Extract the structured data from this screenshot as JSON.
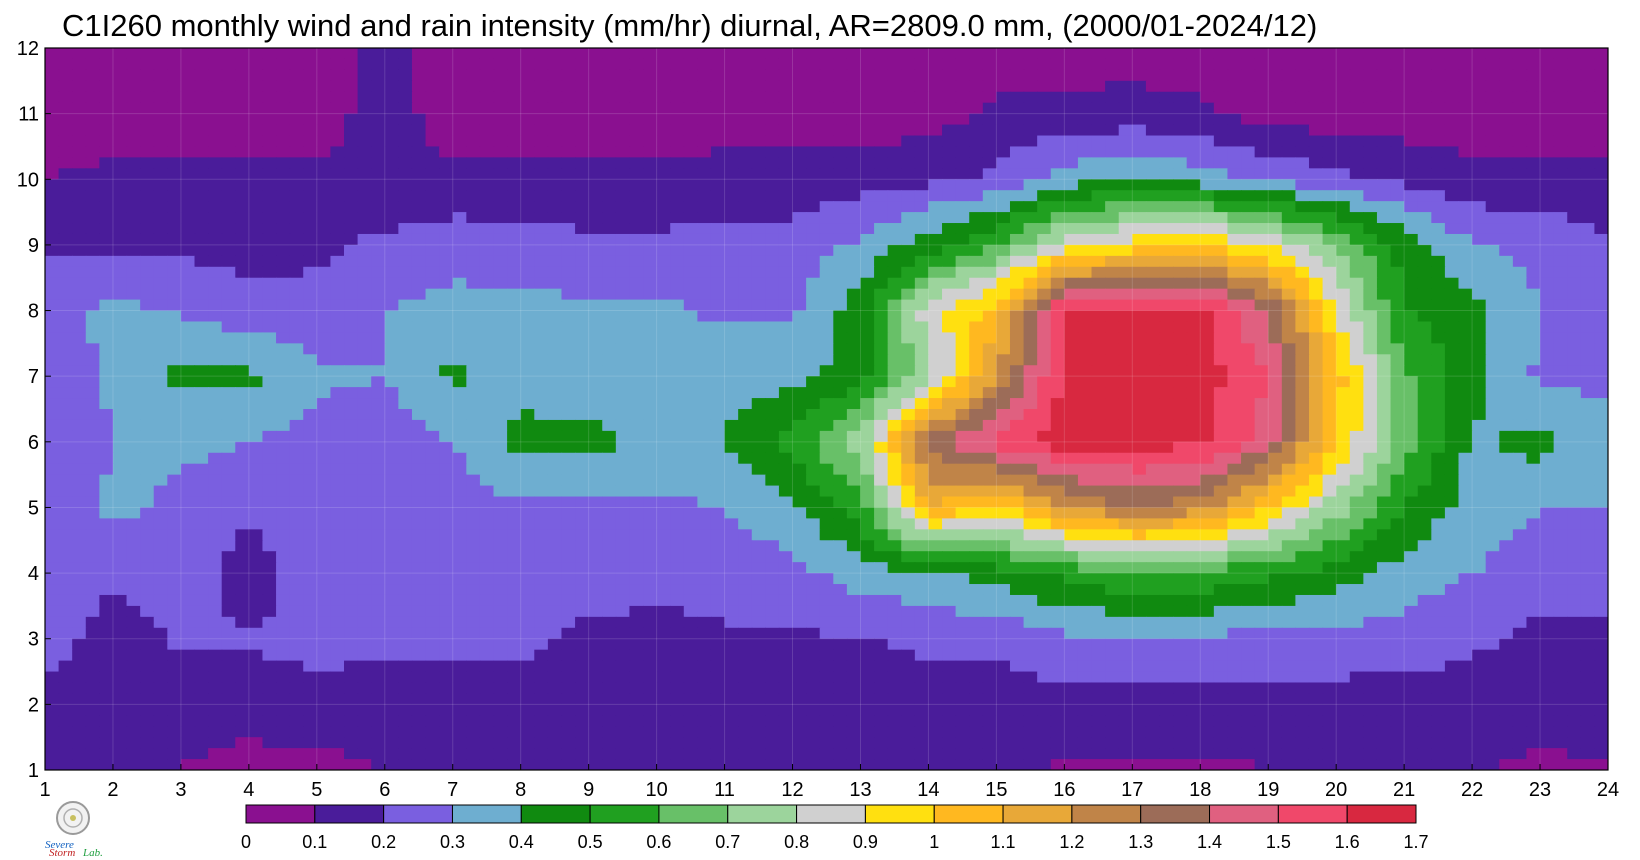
{
  "chart_data": {
    "type": "heatmap",
    "title": "C1I260 monthly wind and rain intensity (mm/hr) diurnal, AR=2809.0 mm, (2000/01-2024/12)",
    "xlabel": "",
    "ylabel": "",
    "x": [
      1,
      2,
      3,
      4,
      5,
      6,
      7,
      8,
      9,
      10,
      11,
      12,
      13,
      14,
      15,
      16,
      17,
      18,
      19,
      20,
      21,
      22,
      23,
      24
    ],
    "y": [
      1,
      2,
      3,
      4,
      5,
      6,
      7,
      8,
      9,
      10,
      11,
      12
    ],
    "xlim": [
      1,
      24
    ],
    "ylim": [
      1,
      12
    ],
    "x_ticks": [
      "1",
      "2",
      "3",
      "4",
      "5",
      "6",
      "7",
      "8",
      "9",
      "10",
      "11",
      "12",
      "13",
      "14",
      "15",
      "16",
      "17",
      "18",
      "19",
      "20",
      "21",
      "22",
      "23",
      "24"
    ],
    "y_ticks": [
      "1",
      "2",
      "3",
      "4",
      "5",
      "6",
      "7",
      "8",
      "9",
      "10",
      "11",
      "12"
    ],
    "grid": true,
    "values": [
      [
        0.15,
        0.1,
        0.1,
        0.05,
        0.06,
        0.1,
        0.1,
        0.1,
        0.17,
        0.17,
        0.18,
        0.18,
        0.18,
        0.18,
        0.18,
        0.08,
        0.08,
        0.08,
        0.1,
        0.1,
        0.12,
        0.12,
        0.07,
        0.09
      ],
      [
        0.17,
        0.13,
        0.15,
        0.16,
        0.18,
        0.16,
        0.16,
        0.17,
        0.15,
        0.15,
        0.15,
        0.15,
        0.15,
        0.15,
        0.15,
        0.17,
        0.17,
        0.17,
        0.16,
        0.16,
        0.15,
        0.14,
        0.16,
        0.16
      ],
      [
        0.24,
        0.16,
        0.21,
        0.21,
        0.22,
        0.22,
        0.22,
        0.22,
        0.18,
        0.18,
        0.19,
        0.19,
        0.19,
        0.22,
        0.22,
        0.28,
        0.28,
        0.28,
        0.27,
        0.26,
        0.26,
        0.22,
        0.17,
        0.18
      ],
      [
        0.24,
        0.22,
        0.26,
        0.15,
        0.25,
        0.26,
        0.26,
        0.26,
        0.24,
        0.22,
        0.23,
        0.27,
        0.35,
        0.38,
        0.45,
        0.52,
        0.6,
        0.58,
        0.52,
        0.45,
        0.35,
        0.3,
        0.26,
        0.26
      ],
      [
        0.22,
        0.32,
        0.28,
        0.22,
        0.3,
        0.28,
        0.25,
        0.28,
        0.26,
        0.28,
        0.3,
        0.38,
        0.55,
        1.1,
        0.95,
        1.2,
        1.3,
        1.25,
        1.0,
        0.75,
        0.5,
        0.35,
        0.3,
        0.3
      ],
      [
        0.2,
        0.3,
        0.32,
        0.3,
        0.26,
        0.25,
        0.3,
        0.44,
        0.43,
        0.38,
        0.4,
        0.55,
        0.75,
        1.35,
        1.55,
        1.65,
        1.65,
        1.62,
        1.45,
        1.0,
        0.65,
        0.38,
        0.44,
        0.32
      ],
      [
        0.23,
        0.32,
        0.42,
        0.42,
        0.32,
        0.3,
        0.42,
        0.35,
        0.33,
        0.33,
        0.36,
        0.36,
        0.45,
        0.75,
        1.2,
        1.62,
        1.65,
        1.65,
        1.5,
        1.05,
        0.62,
        0.45,
        0.28,
        0.28
      ],
      [
        0.28,
        0.32,
        0.29,
        0.24,
        0.23,
        0.3,
        0.33,
        0.33,
        0.32,
        0.32,
        0.28,
        0.28,
        0.45,
        0.85,
        1.05,
        1.62,
        1.65,
        1.62,
        1.4,
        0.9,
        0.5,
        0.44,
        0.3,
        0.27
      ],
      [
        0.18,
        0.18,
        0.18,
        0.16,
        0.18,
        0.22,
        0.26,
        0.25,
        0.22,
        0.22,
        0.24,
        0.24,
        0.32,
        0.45,
        0.6,
        0.85,
        0.95,
        1.0,
        0.9,
        0.7,
        0.45,
        0.31,
        0.27,
        0.22
      ],
      [
        0.1,
        0.12,
        0.12,
        0.12,
        0.12,
        0.12,
        0.12,
        0.12,
        0.12,
        0.12,
        0.14,
        0.14,
        0.16,
        0.18,
        0.22,
        0.35,
        0.4,
        0.35,
        0.28,
        0.22,
        0.17,
        0.13,
        0.13,
        0.12
      ],
      [
        0.05,
        0.05,
        0.05,
        0.05,
        0.05,
        0.15,
        0.05,
        0.05,
        0.05,
        0.05,
        0.05,
        0.05,
        0.05,
        0.05,
        0.12,
        0.13,
        0.14,
        0.12,
        0.06,
        0.05,
        0.05,
        0.05,
        0.05,
        0.05
      ],
      [
        0.05,
        0.05,
        0.1,
        0.05,
        0.05,
        0.12,
        0.05,
        0.05,
        0.05,
        0.05,
        0.05,
        0.05,
        0.05,
        0.05,
        0.05,
        0.05,
        0.05,
        0.05,
        0.05,
        0.05,
        0.05,
        0.05,
        0.05,
        0.05
      ]
    ],
    "colorbar": {
      "levels": [
        0,
        0.1,
        0.2,
        0.3,
        0.4,
        0.5,
        0.6,
        0.7,
        0.8,
        0.9,
        1,
        1.1,
        1.2,
        1.3,
        1.4,
        1.5,
        1.6,
        1.7
      ],
      "tick_labels": [
        "0",
        "0.1",
        "0.2",
        "0.3",
        "0.4",
        "0.5",
        "0.6",
        "0.7",
        "0.8",
        "0.9",
        "1",
        "1.1",
        "1.2",
        "1.3",
        "1.4",
        "1.5",
        "1.6",
        "1.7"
      ],
      "colors": [
        "#8a1090",
        "#4a1c9a",
        "#7a5fe0",
        "#6eaed0",
        "#108a10",
        "#20a020",
        "#68c068",
        "#9cd49c",
        "#d0d0d0",
        "#ffe010",
        "#ffb820",
        "#e8a838",
        "#c08448",
        "#9c6c58",
        "#e06080",
        "#f0486a",
        "#d82840"
      ]
    },
    "contour_line_color": "#f0a020"
  }
}
